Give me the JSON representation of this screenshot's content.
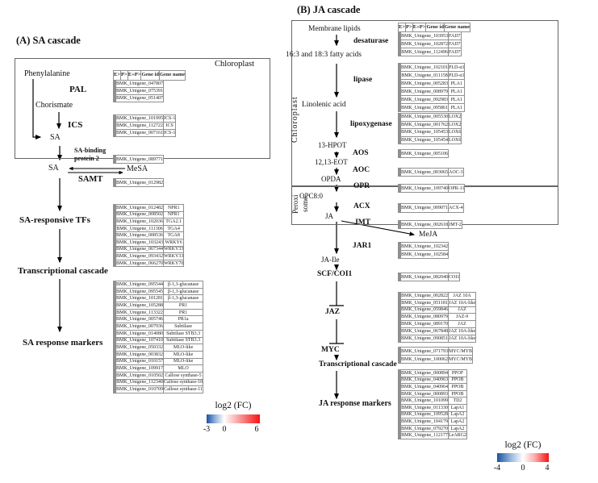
{
  "panels": {
    "a": {
      "title": "(A) SA cascade",
      "header": [
        "E>",
        "P>",
        "E+P>",
        "Gene id",
        "Gene name"
      ],
      "scale": {
        "neg": -3,
        "pos": 6
      },
      "labels": {
        "chloroplast": "Chloroplast",
        "phenylalanine": "Phenylalanine",
        "pal": "PAL",
        "chorismate": "Chorismate",
        "ics": "ICS",
        "sa_box": "SA",
        "sabp2_l1": "SA-binding",
        "sabp2_l2": "protein 2",
        "sa": "SA",
        "mesa": "MeSA",
        "samt": "SAMT",
        "tfs": "SA-responsive TFs",
        "cascade": "Transcriptional cascade",
        "markers": "SA response markers"
      },
      "legend": {
        "title": "log2 (FC)",
        "ticks": [
          "-3",
          "0",
          "6"
        ]
      },
      "groups": [
        {
          "key": "pal",
          "rows": [
            {
              "id": "BMK_Unigene_047807",
              "name": null,
              "v": [
                -3,
                -2.2,
                -3
              ]
            },
            {
              "id": "BMK_Unigene_075391",
              "name": null,
              "v": [
                -2.5,
                0,
                0
              ]
            },
            {
              "id": "BMK_Unigene_051407",
              "name": null,
              "v": [
                -2,
                -1,
                -2.2
              ]
            }
          ]
        },
        {
          "key": "ics",
          "rows": [
            {
              "id": "BMK_Unigene_101995",
              "name": "ICS-1",
              "v": [
                2,
                0,
                0
              ]
            },
            {
              "id": "BMK_Unigene_112722",
              "name": "ICS",
              "v": [
                2,
                0,
                0
              ]
            },
            {
              "id": "BMK_Unigene_007161",
              "name": "ICS-1",
              "v": [
                0,
                0,
                0
              ]
            }
          ]
        },
        {
          "key": "sabp2",
          "rows": [
            {
              "id": "BMK_Unigene_089771",
              "name": null,
              "v": [
                3.5,
                4,
                3.5
              ]
            }
          ]
        },
        {
          "key": "samt",
          "rows": [
            {
              "id": "BMK_Unigene_012982",
              "name": null,
              "v": [
                0,
                0,
                0
              ]
            }
          ]
        },
        {
          "key": "tfs",
          "rows": [
            {
              "id": "BMK_Unigene_012482",
              "name": "NPR1",
              "v": [
                0,
                0,
                0
              ]
            },
            {
              "id": "BMK_Unigene_008502",
              "name": "NPR1",
              "v": [
                0,
                0,
                0
              ]
            },
            {
              "id": "BMK_Unigene_102036",
              "name": "TGA2.1",
              "v": [
                -1,
                0,
                0
              ]
            },
            {
              "id": "BMK_Unigene_111306",
              "name": "TGA4",
              "v": [
                0,
                2.5,
                2.5
              ]
            },
            {
              "id": "BMK_Unigene_008536",
              "name": "TGA8",
              "v": [
                0,
                2.5,
                2.5
              ]
            },
            {
              "id": "BMK_Unigene_103243",
              "name": "WRKY6",
              "v": [
                -1,
                0,
                0
              ]
            },
            {
              "id": "BMK_Unigene_067344",
              "name": "WRKY33",
              "v": [
                0,
                0,
                -1.5
              ]
            },
            {
              "id": "BMK_Unigene_093432",
              "name": "WRKY33",
              "v": [
                0,
                0,
                -1.5
              ]
            },
            {
              "id": "BMK_Unigene_066270",
              "name": "WRKY70",
              "v": [
                0,
                0,
                -1.8
              ]
            }
          ]
        },
        {
          "key": "markers",
          "rows": [
            {
              "id": "BMK_Unigene_095544",
              "name": "β-1,3-glucanase",
              "v": [
                2.5,
                0,
                0
              ]
            },
            {
              "id": "BMK_Unigene_095545",
              "name": "β-1,3-glucanase",
              "v": [
                2.5,
                0,
                0
              ]
            },
            {
              "id": "BMK_Unigene_101281",
              "name": "β-1,3-glucanase",
              "v": [
                4.5,
                0,
                3
              ]
            },
            {
              "id": "BMK_Unigene_105288",
              "name": "PR1",
              "v": [
                0,
                0,
                5.5
              ]
            },
            {
              "id": "BMK_Unigene_113322",
              "name": "PR1",
              "v": [
                0,
                2,
                3
              ]
            },
            {
              "id": "BMK_Unigene_005746",
              "name": "PR1a",
              "v": [
                0,
                2.5,
                3
              ]
            },
            {
              "id": "BMK_Unigene_007936",
              "name": "Subtilase",
              "v": [
                2.5,
                0,
                2.5
              ]
            },
            {
              "id": "BMK_Unigene_014080",
              "name": "Subtilase STB3.3",
              "v": [
                0,
                2.5,
                2.5
              ]
            },
            {
              "id": "BMK_Unigene_107410",
              "name": "Subtilase STB3.3",
              "v": [
                0,
                -1.2,
                2
              ]
            },
            {
              "id": "BMK_Unigene_050332",
              "name": "MLO-like",
              "v": [
                0,
                2.5,
                3
              ]
            },
            {
              "id": "BMK_Unigene_003832",
              "name": "MLO-like",
              "v": [
                0,
                0,
                -1.2
              ]
            },
            {
              "id": "BMK_Unigene_010157",
              "name": "MLO-like",
              "v": [
                2.5,
                0,
                0
              ]
            },
            {
              "id": "BMK_Unigene_109917",
              "name": "MLO",
              "v": [
                3,
                0,
                2.5
              ]
            },
            {
              "id": "BMK_Unigene_010502",
              "name": "Callose synthase-5",
              "v": [
                -2.2,
                0,
                0
              ]
            },
            {
              "id": "BMK_Unigene_112340",
              "name": "Callose synthase-10",
              "v": [
                0,
                -1.2,
                0
              ]
            },
            {
              "id": "BMK_Unigene_010709",
              "name": "Callose synthase-11",
              "v": [
                0,
                0,
                2.5
              ]
            }
          ]
        }
      ]
    },
    "b": {
      "title": "(B) JA cascade",
      "header": [
        "E>",
        "P>",
        "E+P>",
        "Gene id",
        "Gene name"
      ],
      "scale": {
        "neg": -4,
        "pos": 4
      },
      "labels": {
        "chloroplast": "Chloroplast",
        "perox_l1": "Peroxi",
        "perox_l2": "some",
        "membrane": "Membrane lipids",
        "desaturase": "desaturase",
        "fatty": "16:3 and 18:3 fatty acids",
        "lipase": "lipase",
        "linolenic": "Linolenic acid",
        "lipoxygenase": "lipoxygenase",
        "hpot": "13-HPOT",
        "aos": "AOS",
        "eot": "12,13-EOT",
        "aoc": "AOC",
        "opda": "OPDA",
        "opr": "OPR",
        "opc": "OPC8:0",
        "acx": "ACX",
        "ja": "JA",
        "jmt": "JMT",
        "meja": "MeJA",
        "jar1": "JAR1",
        "jaile": "JA-Ile",
        "scf": "SCF/COI1",
        "jaz": "JAZ",
        "myc": "MYC",
        "cascade": "Transcriptional cascade",
        "markers": "JA response markers"
      },
      "legend": {
        "title": "log2 (FC)",
        "ticks": [
          "-4",
          "0",
          "4"
        ]
      },
      "groups": [
        {
          "key": "desaturase",
          "rows": [
            {
              "id": "BMK_Unigene_103953",
              "name": "FAD7",
              "v": [
                -3.5,
                0,
                -3
              ]
            },
            {
              "id": "BMK_Unigene_102872",
              "name": "FAD7",
              "v": [
                0,
                0,
                0
              ]
            },
            {
              "id": "BMK_Unigene_112496",
              "name": "FAD7",
              "v": [
                0,
                0,
                0
              ]
            }
          ]
        },
        {
          "key": "lipase",
          "rows": [
            {
              "id": "BMK_Unigene_102101",
              "name": "PLD-α1",
              "v": [
                0,
                -1.5,
                -1.5
              ]
            },
            {
              "id": "BMK_Unigene_011158",
              "name": "PLD-α1",
              "v": [
                0,
                -1.5,
                0
              ]
            },
            {
              "id": "BMK_Unigene_005283",
              "name": "PLA1",
              "v": [
                0,
                -2.2,
                0
              ]
            },
            {
              "id": "BMK_Unigene_008979",
              "name": "PLA1",
              "v": [
                0,
                0,
                2.5
              ]
            },
            {
              "id": "BMK_Unigene_092983",
              "name": "PLA1",
              "v": [
                0,
                0,
                4
              ]
            },
            {
              "id": "BMK_Unigene_095861",
              "name": "PLA1",
              "v": [
                -1.5,
                0,
                0
              ]
            }
          ]
        },
        {
          "key": "lox",
          "rows": [
            {
              "id": "BMK_Unigene_005530",
              "name": "LOX2",
              "v": [
                -2.8,
                0,
                0
              ]
            },
            {
              "id": "BMK_Unigene_001762",
              "name": "LOX2",
              "v": [
                -3.2,
                -1.5,
                -1.5
              ]
            },
            {
              "id": "BMK_Unigene_105453",
              "name": "LOX6",
              "v": [
                0,
                -1.5,
                -2.5
              ]
            },
            {
              "id": "BMK_Unigene_105454",
              "name": "LOX6",
              "v": [
                0,
                0,
                -2.5
              ]
            }
          ]
        },
        {
          "key": "aos",
          "rows": [
            {
              "id": "BMK_Unigene_005106",
              "name": null,
              "v": [
                0,
                -1.5,
                -2
              ]
            }
          ]
        },
        {
          "key": "aoc",
          "rows": [
            {
              "id": "BMK_Unigene_003065",
              "name": "AOC-3",
              "v": [
                0,
                0,
                0
              ]
            }
          ]
        },
        {
          "key": "opr",
          "rows": [
            {
              "id": "BMK_Unigene_109740",
              "name": "OPR-11",
              "v": [
                0,
                0,
                0
              ]
            }
          ]
        },
        {
          "key": "acx",
          "rows": [
            {
              "id": "BMK_Unigene_009071",
              "name": "ACX-4",
              "v": [
                0,
                0,
                -1.5
              ]
            }
          ]
        },
        {
          "key": "jmt",
          "rows": [
            {
              "id": "BMK_Unigene_002618",
              "name": "JMT-2",
              "v": [
                0,
                -3.5,
                0
              ]
            }
          ]
        },
        {
          "key": "jar1",
          "rows": [
            {
              "id": "BMK_Unigene_102342",
              "name": null,
              "v": [
                0,
                0,
                0
              ]
            },
            {
              "id": "BMK_Unigene_102584",
              "name": null,
              "v": [
                0,
                0,
                0
              ]
            }
          ]
        },
        {
          "key": "coi1",
          "rows": [
            {
              "id": "BMK_Unigene_082040",
              "name": "COI1",
              "v": [
                -1.5,
                0,
                0
              ]
            }
          ]
        },
        {
          "key": "jaz",
          "rows": [
            {
              "id": "BMK_Unigene_002822",
              "name": "JAZ 10A",
              "v": [
                0,
                -2.5,
                -3.2
              ]
            },
            {
              "id": "BMK_Unigene_051181",
              "name": "JAZ 10A-like",
              "v": [
                0,
                -2.5,
                -2.5
              ]
            },
            {
              "id": "BMK_Unigene_059846",
              "name": "JAZ",
              "v": [
                0,
                -2.8,
                -2.5
              ]
            },
            {
              "id": "BMK_Unigene_080979",
              "name": "JAZ-9",
              "v": [
                0,
                -2.5,
                -3.2
              ]
            },
            {
              "id": "BMK_Unigene_089170",
              "name": "JAZ",
              "v": [
                0,
                -2.5,
                -4
              ]
            },
            {
              "id": "BMK_Unigene_067848",
              "name": "JAZ 10A-like",
              "v": [
                0,
                0,
                -1.5
              ]
            },
            {
              "id": "BMK_Unigene_090851",
              "name": "JAZ 10A-like",
              "v": [
                0,
                0,
                -1.8
              ]
            }
          ]
        },
        {
          "key": "myc",
          "rows": [
            {
              "id": "BMK_Unigene_071793",
              "name": "MYC/MYB",
              "v": [
                -2.8,
                0,
                0
              ]
            },
            {
              "id": "BMK_Unigene_100062",
              "name": "MYC/MYB",
              "v": [
                -1.5,
                0,
                0
              ]
            }
          ]
        },
        {
          "key": "markers",
          "rows": [
            {
              "id": "BMK_Unigene_000894",
              "name": "PPOF",
              "v": [
                0,
                0,
                0
              ]
            },
            {
              "id": "BMK_Unigene_040963",
              "name": "PPOB",
              "v": [
                0,
                3.2,
                3.2
              ]
            },
            {
              "id": "BMK_Unigene_040964",
              "name": "PPOB",
              "v": [
                0,
                4,
                3.2
              ]
            },
            {
              "id": "BMK_Unigene_000893",
              "name": "PPOB",
              "v": [
                0,
                0,
                0
              ]
            },
            {
              "id": "BMK_Unigene_101099",
              "name": "TD2",
              "v": [
                0,
                0,
                0
              ]
            },
            {
              "id": "BMK_Unigene_011330",
              "name": "LapA1",
              "v": [
                0,
                0,
                0
              ]
            },
            {
              "id": "BMK_Unigene_109528",
              "name": "LapA2",
              "v": [
                0,
                0,
                0
              ]
            },
            {
              "id": "BMK_Unigene_104179",
              "name": "LapA2",
              "v": [
                0,
                0,
                0
              ]
            },
            {
              "id": "BMK_Unigene_079270",
              "name": "LapA2",
              "v": [
                0,
                0,
                0
              ]
            },
            {
              "id": "BMK_Unigene_112177",
              "name": "LeARG2",
              "v": [
                -1.5,
                0,
                0
              ]
            }
          ]
        }
      ]
    }
  },
  "colors": {
    "heat_negative": "#1a52a3",
    "heat_positive": "#fa1212",
    "heat_neutral": "#ffffff"
  }
}
